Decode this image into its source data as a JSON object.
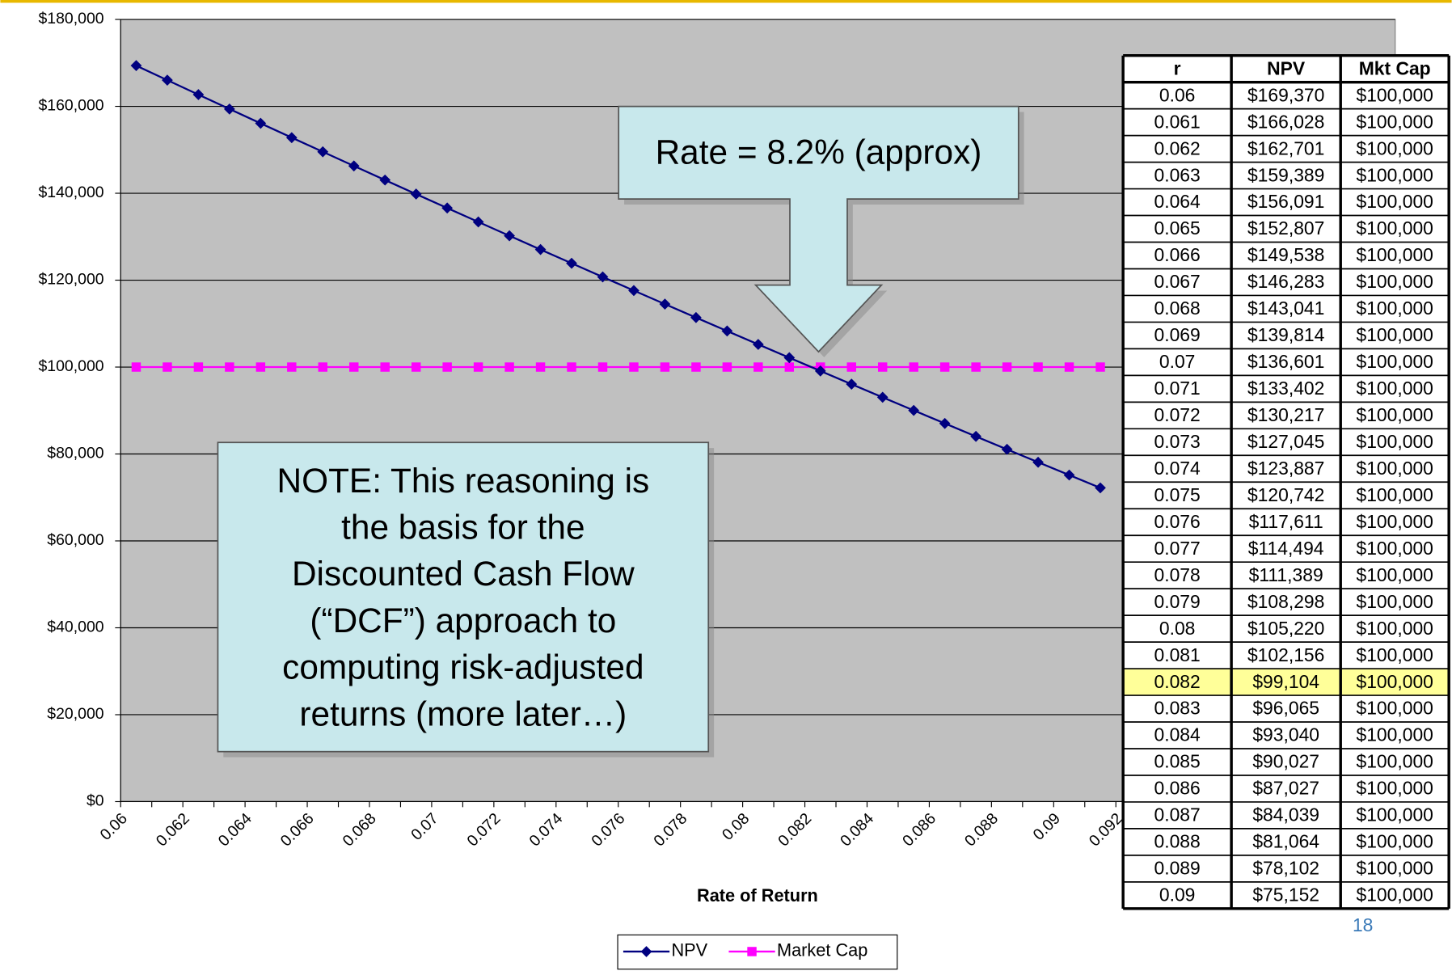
{
  "chart_data": {
    "type": "line",
    "x_label": "Rate of Return",
    "categories": [
      "0.06",
      null,
      "0.062",
      null,
      "0.064",
      null,
      "0.066",
      null,
      "0.068",
      null,
      "0.07",
      null,
      "0.072",
      null,
      "0.074",
      null,
      "0.076",
      null,
      "0.078",
      null,
      "0.08",
      null,
      "0.082",
      null,
      "0.084",
      null,
      "0.086",
      null,
      "0.088",
      null,
      "0.09",
      null,
      "0.092"
    ],
    "series": [
      {
        "name": "NPV",
        "color": "#000080",
        "marker": "diamond",
        "values": [
          169370,
          166028,
          162701,
          159389,
          156091,
          152807,
          149538,
          146283,
          143041,
          139814,
          136601,
          133402,
          130217,
          127045,
          123887,
          120742,
          117611,
          114494,
          111389,
          108298,
          105220,
          102156,
          99104,
          96065,
          93040,
          90027,
          87027,
          84039,
          81064,
          78102,
          75152,
          72200,
          null
        ]
      },
      {
        "name": "Market Cap",
        "color": "#ff00ff",
        "marker": "square",
        "values": [
          100000,
          100000,
          100000,
          100000,
          100000,
          100000,
          100000,
          100000,
          100000,
          100000,
          100000,
          100000,
          100000,
          100000,
          100000,
          100000,
          100000,
          100000,
          100000,
          100000,
          100000,
          100000,
          100000,
          100000,
          100000,
          100000,
          100000,
          100000,
          100000,
          100000,
          100000,
          100000,
          null
        ]
      }
    ],
    "ylim": [
      0,
      180000
    ],
    "yticks": [
      {
        "value": 0,
        "label": "$0"
      },
      {
        "value": 20000,
        "label": "$20,000"
      },
      {
        "value": 40000,
        "label": "$40,000"
      },
      {
        "value": 60000,
        "label": "$60,000"
      },
      {
        "value": 80000,
        "label": "$80,000"
      },
      {
        "value": 100000,
        "label": "$100,000"
      },
      {
        "value": 120000,
        "label": "$120,000"
      },
      {
        "value": 140000,
        "label": "$140,000"
      },
      {
        "value": 160000,
        "label": "$160,000"
      },
      {
        "value": 180000,
        "label": "$180,000"
      }
    ],
    "grid": true,
    "legend": "bottom",
    "annotations": [
      "Rate = 8.2% (approx)",
      [
        "NOTE: This reasoning is",
        "the basis for the",
        "Discounted Cash Flow",
        "(“DCF”) approach to",
        "computing risk-adjusted",
        "returns (more later…)"
      ]
    ]
  },
  "table": {
    "columns": [
      "r",
      "NPV",
      "Mkt Cap"
    ],
    "highlight_row": 22,
    "rows": [
      [
        "0.06",
        "$169,370",
        "$100,000"
      ],
      [
        "0.061",
        "$166,028",
        "$100,000"
      ],
      [
        "0.062",
        "$162,701",
        "$100,000"
      ],
      [
        "0.063",
        "$159,389",
        "$100,000"
      ],
      [
        "0.064",
        "$156,091",
        "$100,000"
      ],
      [
        "0.065",
        "$152,807",
        "$100,000"
      ],
      [
        "0.066",
        "$149,538",
        "$100,000"
      ],
      [
        "0.067",
        "$146,283",
        "$100,000"
      ],
      [
        "0.068",
        "$143,041",
        "$100,000"
      ],
      [
        "0.069",
        "$139,814",
        "$100,000"
      ],
      [
        "0.07",
        "$136,601",
        "$100,000"
      ],
      [
        "0.071",
        "$133,402",
        "$100,000"
      ],
      [
        "0.072",
        "$130,217",
        "$100,000"
      ],
      [
        "0.073",
        "$127,045",
        "$100,000"
      ],
      [
        "0.074",
        "$123,887",
        "$100,000"
      ],
      [
        "0.075",
        "$120,742",
        "$100,000"
      ],
      [
        "0.076",
        "$117,611",
        "$100,000"
      ],
      [
        "0.077",
        "$114,494",
        "$100,000"
      ],
      [
        "0.078",
        "$111,389",
        "$100,000"
      ],
      [
        "0.079",
        "$108,298",
        "$100,000"
      ],
      [
        "0.08",
        "$105,220",
        "$100,000"
      ],
      [
        "0.081",
        "$102,156",
        "$100,000"
      ],
      [
        "0.082",
        "$99,104",
        "$100,000"
      ],
      [
        "0.083",
        "$96,065",
        "$100,000"
      ],
      [
        "0.084",
        "$93,040",
        "$100,000"
      ],
      [
        "0.085",
        "$90,027",
        "$100,000"
      ],
      [
        "0.086",
        "$87,027",
        "$100,000"
      ],
      [
        "0.087",
        "$84,039",
        "$100,000"
      ],
      [
        "0.088",
        "$81,064",
        "$100,000"
      ],
      [
        "0.089",
        "$78,102",
        "$100,000"
      ],
      [
        "0.09",
        "$75,152",
        "$100,000"
      ]
    ]
  },
  "page_number": "18"
}
